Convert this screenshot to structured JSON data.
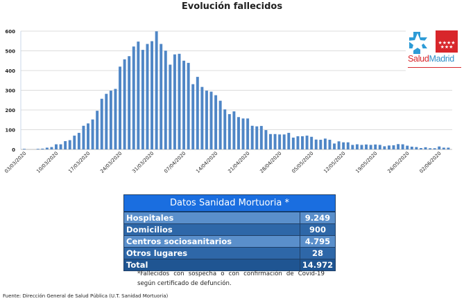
{
  "title": "Evolución fallecidos",
  "chart_data": {
    "type": "bar",
    "title": "Evolución fallecidos",
    "xlabel": "",
    "ylabel": "",
    "ylim": [
      0,
      600
    ],
    "yticks": [
      "0",
      "100",
      "200",
      "300",
      "400",
      "500",
      "600"
    ],
    "x_tick_labels": [
      "03/03/2020",
      "10/03/2020",
      "17/03/2020",
      "24/03/2020",
      "31/03/2020",
      "07/04/2020",
      "14/04/2020",
      "21/04/2020",
      "28/04/2020",
      "05/05/2020",
      "12/05/2020",
      "19/05/2020",
      "26/05/2020",
      "02/06/2020"
    ],
    "grid": true,
    "color": "#4f86c6",
    "values": [
      3,
      0,
      0,
      3,
      4,
      9,
      12,
      26,
      26,
      42,
      47,
      70,
      84,
      120,
      132,
      152,
      196,
      257,
      282,
      298,
      307,
      420,
      457,
      473,
      522,
      547,
      505,
      535,
      549,
      599,
      535,
      501,
      430,
      482,
      485,
      450,
      439,
      331,
      368,
      317,
      298,
      293,
      275,
      247,
      203,
      179,
      193,
      164,
      157,
      157,
      120,
      117,
      119,
      98,
      78,
      78,
      76,
      76,
      84,
      60,
      67,
      67,
      70,
      64,
      50,
      49,
      55,
      49,
      30,
      41,
      36,
      36,
      23,
      26,
      23,
      25,
      23,
      25,
      23,
      16,
      20,
      21,
      27,
      26,
      19,
      14,
      12,
      7,
      11,
      6,
      6,
      15,
      9,
      9
    ]
  },
  "logo": {
    "text_part1": "Salud",
    "text_part2": "Madrid"
  },
  "table": {
    "header": "Datos Sanidad Mortuoria *",
    "rows": [
      {
        "label": "Hospitales",
        "value": "9.249"
      },
      {
        "label": "Domicilios",
        "value": "900"
      },
      {
        "label": "Centros sociosanitarios",
        "value": "4.795"
      },
      {
        "label": "Otros lugares",
        "value": "28"
      },
      {
        "label": "Total",
        "value": "14.972"
      }
    ]
  },
  "note": "*Fallecidos con sospecha o con confirmación de Covid-19 según certificado de defunción.",
  "source": "Fuente: Dirección General de Salud Pública (U.T. Sanidad Mortuoria)"
}
